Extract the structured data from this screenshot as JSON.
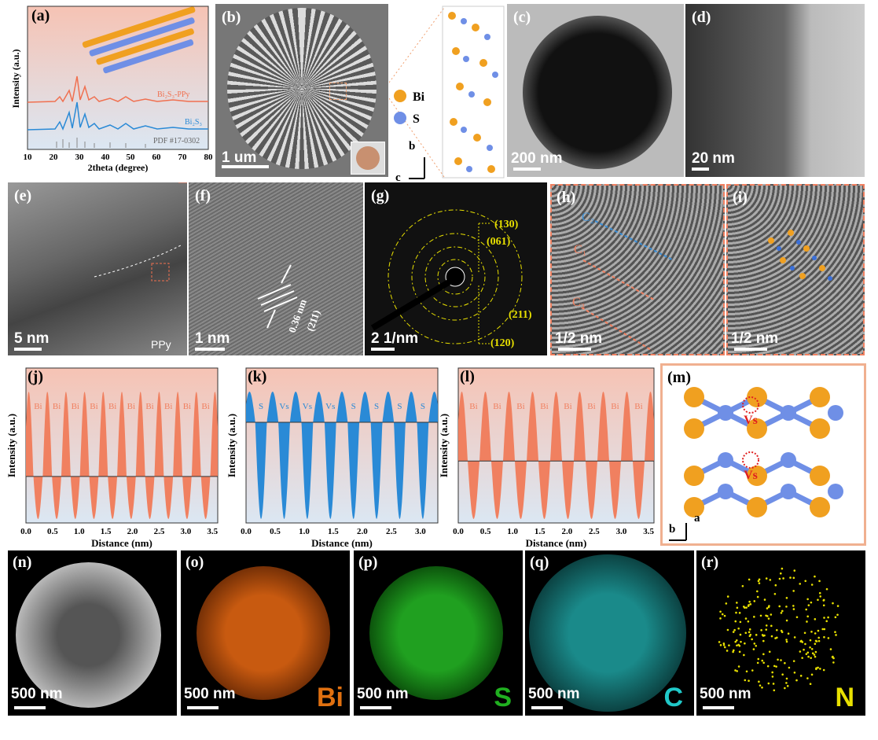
{
  "panels": {
    "a": {
      "label": "(a)",
      "ylabel": "Intensity (a.u.)",
      "xlabel": "2theta (degree)",
      "ticks": [
        "10",
        "20",
        "30",
        "40",
        "50",
        "60",
        "70",
        "80"
      ],
      "curve1": "Bi₂S₃-PPy",
      "curve2": "Bi₂S₃",
      "ref": "PDF #17-0302"
    },
    "b": {
      "label": "(b)",
      "scale": "1 um"
    },
    "struct": {
      "bi": "Bi",
      "s": "S",
      "axis_b": "b",
      "axis_c": "c"
    },
    "c": {
      "label": "(c)",
      "scale": "200 nm"
    },
    "d": {
      "label": "(d)",
      "scale": "20 nm"
    },
    "e": {
      "label": "(e)",
      "scale": "5 nm",
      "ppy": "PPy"
    },
    "f": {
      "label": "(f)",
      "scale": "1 nm",
      "d": "0.36 nm",
      "plane": "(211)"
    },
    "g": {
      "label": "(g)",
      "scale": "2 1/nm",
      "rings": [
        "(130)",
        "(061)",
        "(211)",
        "(120)"
      ]
    },
    "h": {
      "label": "(h)",
      "scale": "1/2 nm",
      "c1": "C₁",
      "c2": "C₂",
      "c3": "C₃"
    },
    "i": {
      "label": "(i)",
      "scale": "1/2 nm"
    },
    "j": {
      "label": "(j)",
      "ylabel": "Intensity (a.u.)",
      "xlabel": "Distance (nm)",
      "peaks": [
        "Bi",
        "Bi",
        "Bi",
        "Bi",
        "Bi",
        "Bi",
        "Bi",
        "Bi",
        "Bi",
        "Bi"
      ]
    },
    "k": {
      "label": "(k)",
      "ylabel": "Intensity (a.u.)",
      "xlabel": "Distance (nm)",
      "peaks": [
        "S",
        "Vs",
        "Vs",
        "Vs",
        "S",
        "S",
        "S",
        "S"
      ]
    },
    "l": {
      "label": "(l)",
      "ylabel": "Intensity (a.u.)",
      "xlabel": "Distance (nm)",
      "peaks": [
        "Bi",
        "Bi",
        "Bi",
        "Bi",
        "Bi",
        "Bi",
        "Bi",
        "Bi"
      ]
    },
    "m": {
      "label": "(m)",
      "vs": "Vs",
      "axis_a": "a",
      "axis_b": "b"
    },
    "n": {
      "label": "(n)",
      "scale": "500 nm"
    },
    "o": {
      "label": "(o)",
      "scale": "500 nm",
      "element": "Bi"
    },
    "p": {
      "label": "(p)",
      "scale": "500 nm",
      "element": "S"
    },
    "q": {
      "label": "(q)",
      "scale": "500 nm",
      "element": "C"
    },
    "r": {
      "label": "(r)",
      "scale": "500 nm",
      "element": "N"
    }
  },
  "chart_data": [
    {
      "type": "line",
      "xlabel": "Distance (nm)",
      "ylabel": "Intensity (a.u.)",
      "xlim": [
        0,
        3.6
      ],
      "xticks": [
        "0.0",
        "0.5",
        "1.0",
        "1.5",
        "2.0",
        "2.5",
        "3.0",
        "3.5"
      ]
    },
    {
      "type": "line",
      "xlabel": "Distance (nm)",
      "ylabel": "Intensity (a.u.)",
      "xlim": [
        0,
        3.3
      ],
      "xticks": [
        "0.0",
        "0.5",
        "1.0",
        "1.5",
        "2.0",
        "2.5",
        "3.0"
      ]
    },
    {
      "type": "line",
      "xlabel": "Distance (nm)",
      "ylabel": "Intensity (a.u.)",
      "xlim": [
        0,
        3.6
      ],
      "xticks": [
        "0.0",
        "0.5",
        "1.0",
        "1.5",
        "2.0",
        "2.5",
        "3.0",
        "3.5"
      ]
    }
  ],
  "colors": {
    "bi": "#f0a020",
    "s": "#6f8fe6",
    "peach": "#f08060",
    "blue": "#2f8fd8",
    "frame": "#f0b090"
  }
}
